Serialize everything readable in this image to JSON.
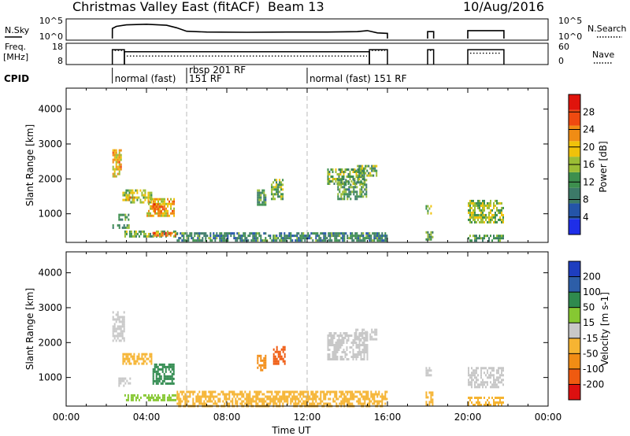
{
  "header": {
    "title": "Christmas Valley East (fitACF)",
    "beam": "Beam 13",
    "date": "10/Aug/2016"
  },
  "side_labels": {
    "nsky": "N.Sky",
    "freq_line1": "Freq.",
    "freq_line2": "[MHz]",
    "cpid": "CPID",
    "nsearch": "N.Search",
    "nave": "Nave"
  },
  "colors": {
    "power_scale": [
      "#1e2ee8",
      "#2454a8",
      "#3c7a68",
      "#3d8f4e",
      "#9bbd35",
      "#f0c20a",
      "#f08c14",
      "#ef4a10",
      "#e0140c"
    ],
    "velocity_scale": [
      "#dd1010",
      "#ef5a10",
      "#f28c14",
      "#f6b432",
      "#c8c8c8",
      "#86c832",
      "#2f8a4e",
      "#2d5ea8",
      "#1e3ebf"
    ],
    "gridline": "#aaaaaa"
  },
  "chart_data": [
    {
      "type": "line",
      "name": "N.Sky / N.Search",
      "title": "",
      "ylabel": "N.Sky",
      "ylabel_right": "N.Search",
      "ytick_labels": [
        "10^5",
        "10^0"
      ],
      "ytick_labels_right": [
        "10^5",
        "10^0"
      ],
      "xlim_hours": [
        0,
        24
      ],
      "segments": [
        {
          "x": [
            2.3,
            2.5,
            3.0,
            4.0,
            5.0,
            5.5,
            6.0,
            7.0,
            9.0,
            11.0,
            13.0,
            14.5,
            15.0,
            15.5,
            16.0
          ],
          "y": [
            0.55,
            0.65,
            0.72,
            0.75,
            0.7,
            0.58,
            0.42,
            0.38,
            0.37,
            0.38,
            0.38,
            0.4,
            0.45,
            0.34,
            0.32
          ]
        },
        {
          "x": [
            18.0,
            18.3
          ],
          "y": [
            0.4,
            0.4
          ]
        },
        {
          "x": [
            20.0,
            21.8
          ],
          "y": [
            0.45,
            0.45
          ]
        }
      ]
    },
    {
      "type": "line",
      "name": "Freq / Nave",
      "title": "",
      "ylabel": "Freq. [MHz]",
      "ylabel_right": "Nave",
      "ytick_labels": [
        "18",
        "8"
      ],
      "ytick_labels_right": [
        "60",
        "0"
      ],
      "ylim": [
        8,
        18
      ],
      "xlim_hours": [
        0,
        24
      ],
      "freq_segments": [
        {
          "x": [
            2.3,
            2.9
          ],
          "y": [
            15,
            15
          ]
        },
        {
          "x": [
            2.9,
            15.1
          ],
          "y": [
            14,
            14
          ]
        },
        {
          "x": [
            15.1,
            16.0
          ],
          "y": [
            15,
            15
          ]
        },
        {
          "x": [
            18.0,
            18.3
          ],
          "y": [
            15,
            15
          ]
        },
        {
          "x": [
            20.0,
            21.8
          ],
          "y": [
            15,
            15
          ]
        }
      ],
      "nave_segments": [
        {
          "x": [
            2.3,
            2.9
          ],
          "y": [
            40,
            40
          ]
        },
        {
          "x": [
            2.9,
            15.1
          ],
          "y": [
            24,
            24
          ]
        },
        {
          "x": [
            15.1,
            16.0
          ],
          "y": [
            40,
            40
          ]
        },
        {
          "x": [
            18.0,
            18.3
          ],
          "y": [
            40,
            40
          ]
        },
        {
          "x": [
            20.0,
            21.8
          ],
          "y": [
            32,
            32
          ]
        }
      ]
    },
    {
      "type": "table",
      "name": "CPID",
      "labels": [
        {
          "x": 2.3,
          "text": "normal (fast)",
          "row": 2
        },
        {
          "x": 6.0,
          "text": "rbsp 201 RF",
          "row": 1
        },
        {
          "x": 6.0,
          "text": "151 RF",
          "row": 2
        },
        {
          "x": 12.0,
          "text": "normal (fast) 151 RF",
          "row": 2
        }
      ]
    },
    {
      "type": "heatmap",
      "name": "Power",
      "xlabel": "",
      "ylabel": "Slant Range [km]",
      "xlim_hours": [
        0,
        24
      ],
      "ylim": [
        180,
        4600
      ],
      "yticks": [
        1000,
        2000,
        3000,
        4000
      ],
      "colorbar_label": "Power [dB]",
      "colorbar_ticks": [
        4,
        8,
        12,
        16,
        20,
        24,
        28
      ],
      "colorbar_range": [
        0,
        32
      ],
      "patches": [
        {
          "t": [
            2.3,
            2.8
          ],
          "r": [
            2050,
            2850
          ],
          "v": 20
        },
        {
          "t": [
            2.6,
            3.2
          ],
          "r": [
            800,
            1000
          ],
          "v": 12
        },
        {
          "t": [
            2.8,
            4.3
          ],
          "r": [
            1300,
            1700
          ],
          "v": 16
        },
        {
          "t": [
            3.0,
            3.4
          ],
          "r": [
            1350,
            1500
          ],
          "v": 24
        },
        {
          "t": [
            4.0,
            5.4
          ],
          "r": [
            900,
            1450
          ],
          "v": 20
        },
        {
          "t": [
            4.3,
            4.9
          ],
          "r": [
            1000,
            1300
          ],
          "v": 24
        },
        {
          "t": [
            2.9,
            5.6
          ],
          "r": [
            300,
            520
          ],
          "v": 14
        },
        {
          "t": [
            4.3,
            5.5
          ],
          "r": [
            320,
            480
          ],
          "v": 24
        },
        {
          "t": [
            2.3,
            3.2
          ],
          "r": [
            550,
            700
          ],
          "v": 12
        },
        {
          "t": [
            9.5,
            10.0
          ],
          "r": [
            1200,
            1700
          ],
          "v": 12
        },
        {
          "t": [
            10.2,
            10.8
          ],
          "r": [
            1400,
            2000
          ],
          "v": 14
        },
        {
          "t": [
            13.0,
            14.9
          ],
          "r": [
            1800,
            2300
          ],
          "v": 14
        },
        {
          "t": [
            13.5,
            15.0
          ],
          "r": [
            1400,
            2000
          ],
          "v": 12
        },
        {
          "t": [
            14.4,
            15.5
          ],
          "r": [
            2050,
            2400
          ],
          "v": 14
        },
        {
          "t": [
            5.5,
            16.0
          ],
          "r": [
            180,
            470
          ],
          "v": 10
        },
        {
          "t": [
            17.9,
            18.2
          ],
          "r": [
            1000,
            1250
          ],
          "v": 16
        },
        {
          "t": [
            17.9,
            18.3
          ],
          "r": [
            200,
            500
          ],
          "v": 12
        },
        {
          "t": [
            20.0,
            21.8
          ],
          "r": [
            700,
            1400
          ],
          "v": 16
        },
        {
          "t": [
            20.0,
            21.8
          ],
          "r": [
            200,
            400
          ],
          "v": 12
        }
      ]
    },
    {
      "type": "heatmap",
      "name": "Velocity",
      "xlabel": "Time UT",
      "ylabel": "Slant Range [km]",
      "xlim_hours": [
        0,
        24
      ],
      "ylim": [
        180,
        4600
      ],
      "yticks": [
        1000,
        2000,
        3000,
        4000
      ],
      "xtick_labels": [
        "00:00",
        "04:00",
        "08:00",
        "12:00",
        "16:00",
        "20:00",
        "00:00"
      ],
      "colorbar_label": "Velocity [m s-1]",
      "colorbar_ticks": [
        -200,
        -100,
        -50,
        -15,
        15,
        50,
        100,
        200
      ],
      "patches": [
        {
          "t": [
            2.3,
            2.9
          ],
          "r": [
            2000,
            2900
          ],
          "v": 0
        },
        {
          "t": [
            2.6,
            3.2
          ],
          "r": [
            700,
            1000
          ],
          "v": 0
        },
        {
          "t": [
            2.8,
            4.3
          ],
          "r": [
            1350,
            1700
          ],
          "v": -30
        },
        {
          "t": [
            4.3,
            5.4
          ],
          "r": [
            800,
            1400
          ],
          "v": 70
        },
        {
          "t": [
            2.9,
            5.6
          ],
          "r": [
            330,
            520
          ],
          "v": 30
        },
        {
          "t": [
            5.5,
            16.0
          ],
          "r": [
            180,
            620
          ],
          "v": -40
        },
        {
          "t": [
            9.5,
            10.0
          ],
          "r": [
            1200,
            1650
          ],
          "v": -80
        },
        {
          "t": [
            10.3,
            10.9
          ],
          "r": [
            1350,
            1900
          ],
          "v": -150
        },
        {
          "t": [
            13.0,
            15.0
          ],
          "r": [
            1500,
            2300
          ],
          "v": 0
        },
        {
          "t": [
            14.4,
            15.5
          ],
          "r": [
            2050,
            2400
          ],
          "v": 0
        },
        {
          "t": [
            17.9,
            18.2
          ],
          "r": [
            1000,
            1300
          ],
          "v": 0
        },
        {
          "t": [
            17.9,
            18.3
          ],
          "r": [
            200,
            600
          ],
          "v": -40
        },
        {
          "t": [
            20.0,
            21.8
          ],
          "r": [
            700,
            1300
          ],
          "v": 0
        },
        {
          "t": [
            20.0,
            21.8
          ],
          "r": [
            200,
            450
          ],
          "v": -20
        }
      ]
    }
  ]
}
